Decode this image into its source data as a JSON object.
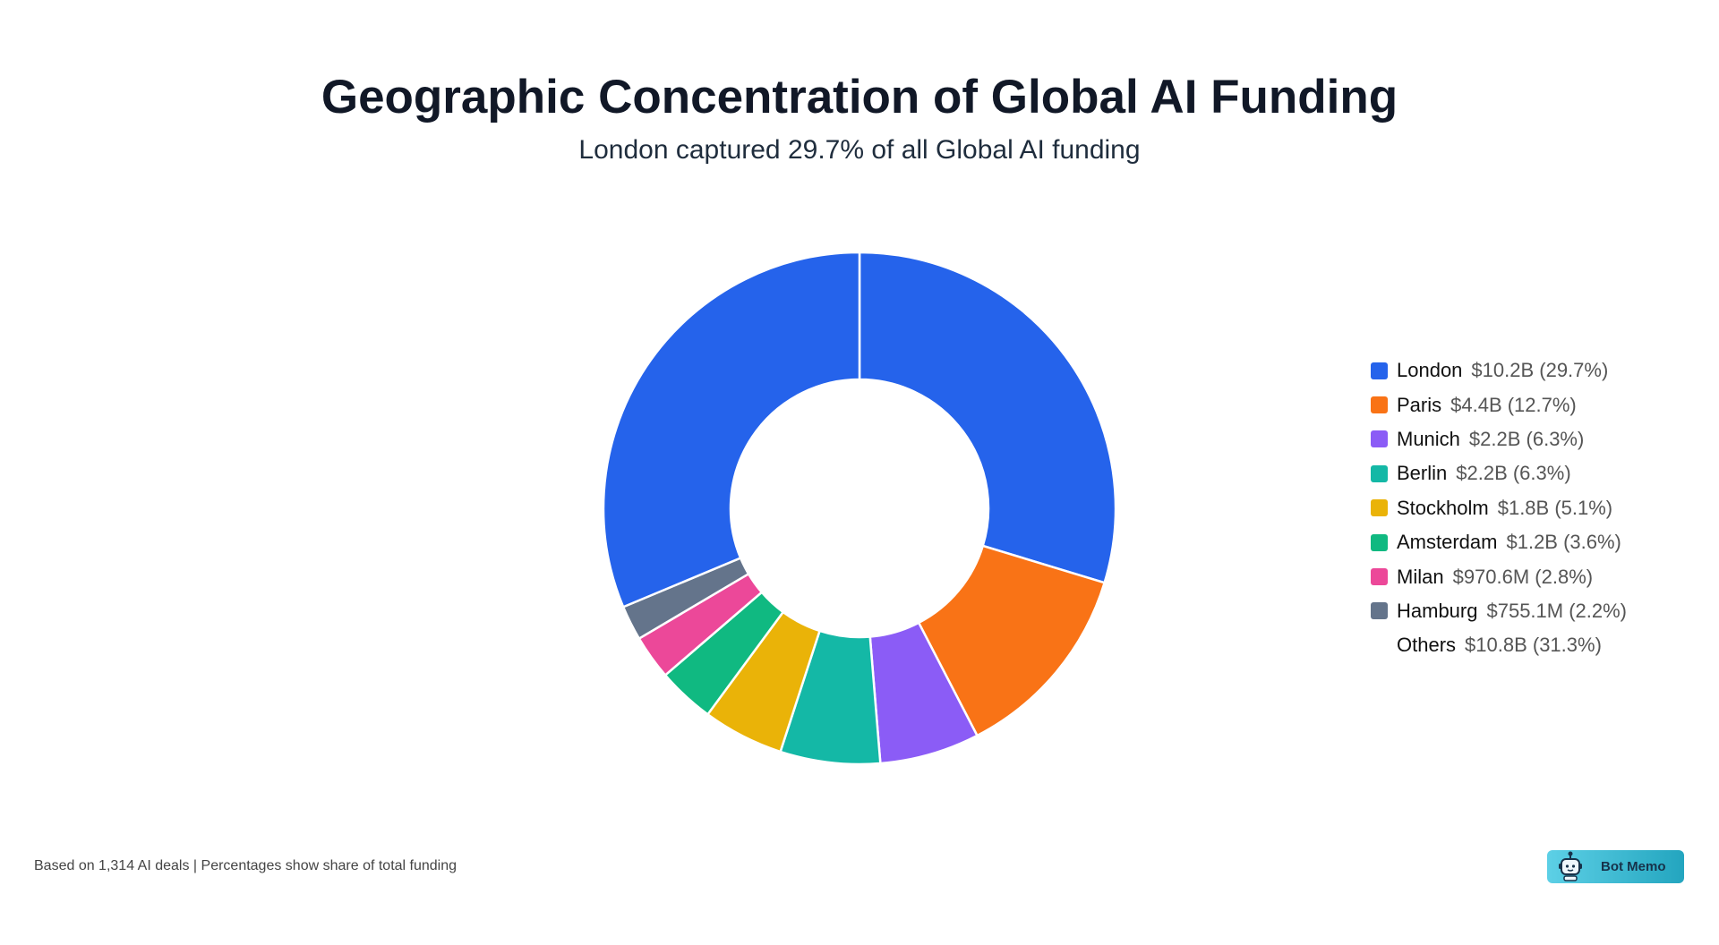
{
  "title": "Geographic Concentration of Global AI Funding",
  "subtitle": "London captured 29.7% of all Global AI funding",
  "footer": "Based on 1,314 AI deals | Percentages show share of total funding",
  "logo": {
    "text": "Bot Memo",
    "icon": "robot-icon"
  },
  "chart_data": {
    "type": "pie",
    "variant": "donut",
    "legend_position": "right",
    "slices": [
      {
        "label": "London",
        "value_text": "$10.2B",
        "percent": 29.7,
        "color": "#2563eb",
        "legend_value": "$10.2B (29.7%)"
      },
      {
        "label": "Paris",
        "value_text": "$4.4B",
        "percent": 12.7,
        "color": "#f97316",
        "legend_value": "$4.4B (12.7%)"
      },
      {
        "label": "Munich",
        "value_text": "$2.2B",
        "percent": 6.3,
        "color": "#8b5cf6",
        "legend_value": "$2.2B (6.3%)"
      },
      {
        "label": "Berlin",
        "value_text": "$2.2B",
        "percent": 6.3,
        "color": "#14b8a6",
        "legend_value": "$2.2B (6.3%)"
      },
      {
        "label": "Stockholm",
        "value_text": "$1.8B",
        "percent": 5.1,
        "color": "#eab308",
        "legend_value": "$1.8B (5.1%)"
      },
      {
        "label": "Amsterdam",
        "value_text": "$1.2B",
        "percent": 3.6,
        "color": "#10b981",
        "legend_value": "$1.2B (3.6%)"
      },
      {
        "label": "Milan",
        "value_text": "$970.6M",
        "percent": 2.8,
        "color": "#ec4899",
        "legend_value": "$970.6M (2.8%)"
      },
      {
        "label": "Hamburg",
        "value_text": "$755.1M",
        "percent": 2.2,
        "color": "#64748b",
        "legend_value": "$755.1M (2.2%)"
      },
      {
        "label": "Others",
        "value_text": "$10.8B",
        "percent": 31.3,
        "color": "#2563eb",
        "legend_value": "$10.8B (31.3%)",
        "no_swatch": true
      }
    ]
  }
}
